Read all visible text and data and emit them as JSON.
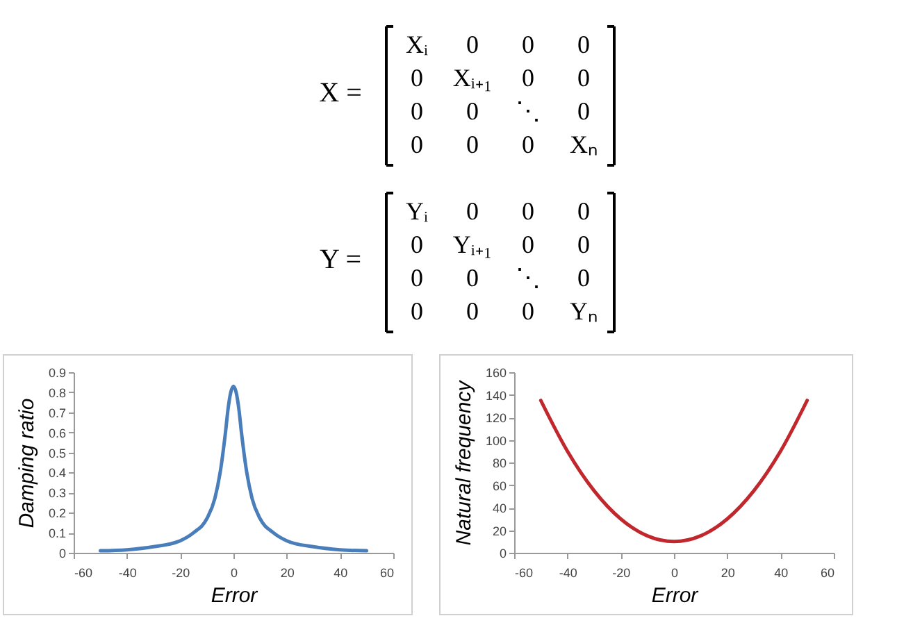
{
  "chart_data": [
    {
      "type": "other",
      "annotations": [
        "X =",
        "Xᵢ 0 0 0",
        "0 Xᵢ₊₁ 0 0",
        "0 0 ⋱ 0",
        "0 0 0 Xₙ",
        "Y =",
        "Yᵢ 0 0 0",
        "0 Yᵢ₊₁ 0 0",
        "0 0 ⋱ 0",
        "0 0 0 Yₙ"
      ]
    },
    {
      "type": "line",
      "xlabel": "Error",
      "ylabel": "Damping ratio",
      "x": [
        -50,
        -40,
        -30,
        -20,
        -15,
        -10,
        -7,
        -5,
        -3,
        -2,
        -1,
        0,
        1,
        2,
        3,
        5,
        7,
        10,
        15,
        20,
        30,
        40,
        50
      ],
      "series": [
        {
          "color": "#4a7ebb",
          "values": [
            0.01,
            0.015,
            0.03,
            0.06,
            0.1,
            0.17,
            0.27,
            0.4,
            0.6,
            0.72,
            0.8,
            0.83,
            0.8,
            0.72,
            0.6,
            0.4,
            0.27,
            0.17,
            0.1,
            0.06,
            0.03,
            0.015,
            0.01
          ]
        }
      ],
      "xlim": [
        -60,
        60
      ],
      "xticks": [
        -60,
        -40,
        -20,
        0,
        20,
        40,
        60
      ],
      "ylim": [
        0,
        0.9
      ],
      "yticks": [
        0,
        0.1,
        0.2,
        0.3,
        0.4,
        0.5,
        0.6,
        0.7,
        0.8,
        0.9
      ]
    },
    {
      "type": "line",
      "xlabel": "Error",
      "ylabel": "Natural frequency",
      "x": [
        -50,
        -40,
        -30,
        -20,
        -10,
        0,
        10,
        20,
        30,
        40,
        50
      ],
      "series": [
        {
          "color": "#c0282d",
          "values": [
            135,
            90,
            55,
            30,
            15,
            10,
            15,
            30,
            55,
            90,
            135
          ]
        }
      ],
      "xlim": [
        -60,
        60
      ],
      "xticks": [
        -60,
        -40,
        -20,
        0,
        20,
        40,
        60
      ],
      "ylim": [
        0,
        160
      ],
      "yticks": [
        0,
        20,
        40,
        60,
        80,
        100,
        120,
        140,
        160
      ]
    }
  ]
}
